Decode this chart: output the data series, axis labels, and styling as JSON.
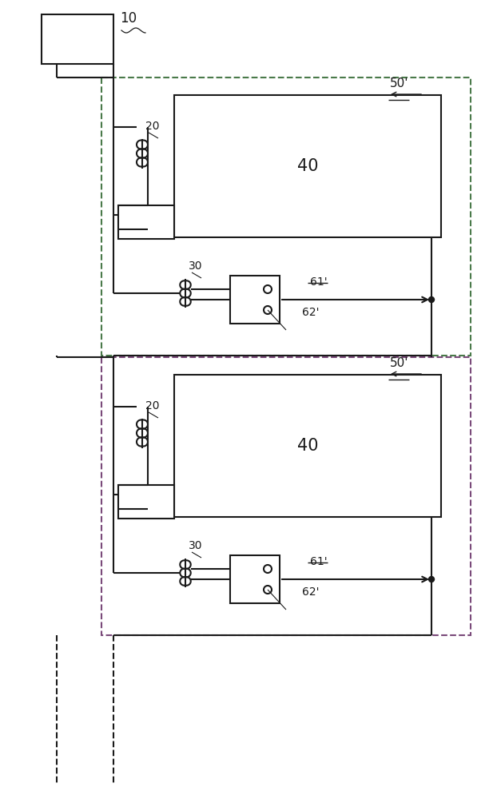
{
  "bg_color": "#ffffff",
  "line_color": "#1a1a1a",
  "dashed_color_1": "#4a7a4a",
  "dashed_color_2": "#7a4a7a",
  "fig_width": 6.27,
  "fig_height": 10.0
}
